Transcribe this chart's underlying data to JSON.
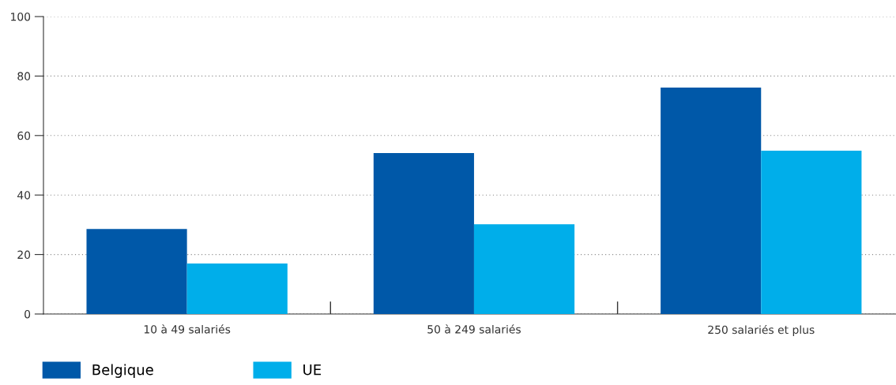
{
  "chart_data": {
    "type": "bar",
    "categories": [
      "10 à 49 salariés",
      "50 à 249 salariés",
      "250 salariés et plus"
    ],
    "series": [
      {
        "name": "Belgique",
        "color": "#0058a8",
        "values": [
          28.6,
          54.1,
          76.1
        ]
      },
      {
        "name": "UE",
        "color": "#00aeea",
        "values": [
          17.0,
          30.2,
          54.9
        ]
      }
    ],
    "ylim": [
      0,
      100
    ],
    "yticks": [
      0,
      20,
      40,
      60,
      80,
      100
    ],
    "grid": "y",
    "legend": "bottom"
  }
}
